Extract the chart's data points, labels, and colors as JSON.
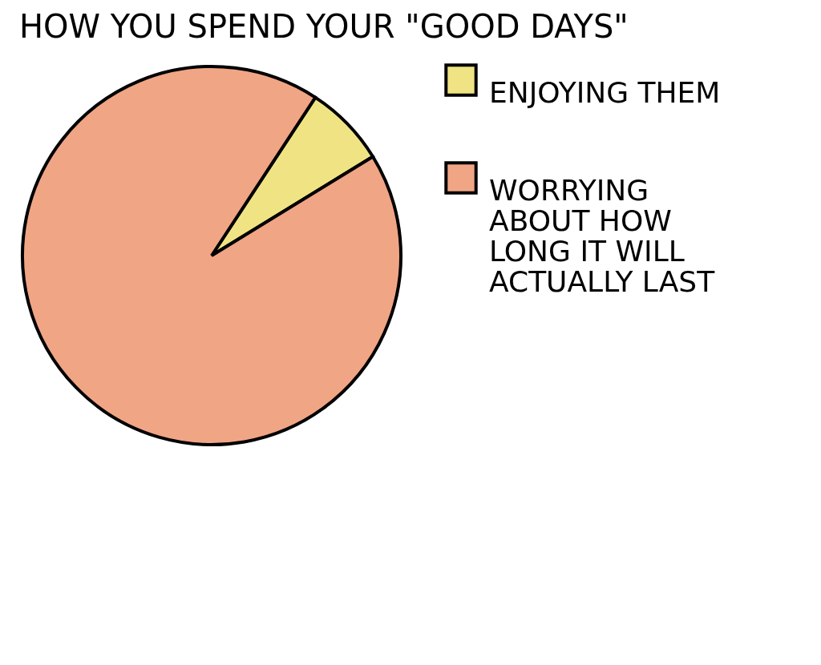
{
  "chart_data": {
    "type": "pie",
    "title": "HOW YOU SPEND YOUR \"GOOD DAYS\"",
    "categories": [
      "ENJOYING THEM",
      "WORRYING ABOUT HOW LONG IT WILL ACTUALLY LAST"
    ],
    "values": [
      7,
      93
    ],
    "colors": [
      "#f0e383",
      "#f0a585"
    ],
    "legend": "right"
  }
}
